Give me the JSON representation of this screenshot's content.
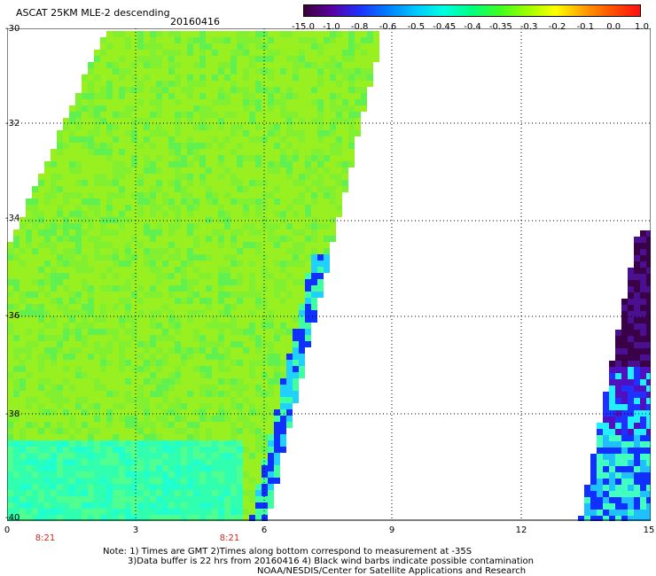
{
  "header": {
    "title": "ASCAT 25KM MLE-2 descending",
    "date": "20160416"
  },
  "colorbar": {
    "labels": [
      "-15.0",
      "-1.0",
      "-0.8",
      "-0.6",
      "-0.5",
      "-0.45",
      "-0.4",
      "-0.35",
      "-0.3",
      "-0.2",
      "-0.1",
      "0.0",
      "1.0"
    ],
    "colors": [
      "#3a003a",
      "#5a00a0",
      "#2030ff",
      "#0080ff",
      "#00c8ff",
      "#00ffe0",
      "#00ff80",
      "#40ff20",
      "#a0ff00",
      "#ffff00",
      "#ffa000",
      "#ff5000",
      "#ff1010"
    ]
  },
  "map": {
    "lat_labels": [
      "-30",
      "-32",
      "-34",
      "-36",
      "-38",
      "-40"
    ],
    "lon_labels": [
      "0",
      "3",
      "6",
      "9",
      "12",
      "15"
    ],
    "time_labels": [
      "8:21",
      "8:21"
    ]
  },
  "notes": {
    "line1": "Note: 1) Times are GMT 2)Times along bottom correspond to measurement at -35S",
    "line2": "3)Data buffer is 22 hrs from 20160416 4) Black wind barbs indicate possible contamination",
    "line3": "NOAA/NESDIS/Center for Satellite Applications and Research"
  }
}
